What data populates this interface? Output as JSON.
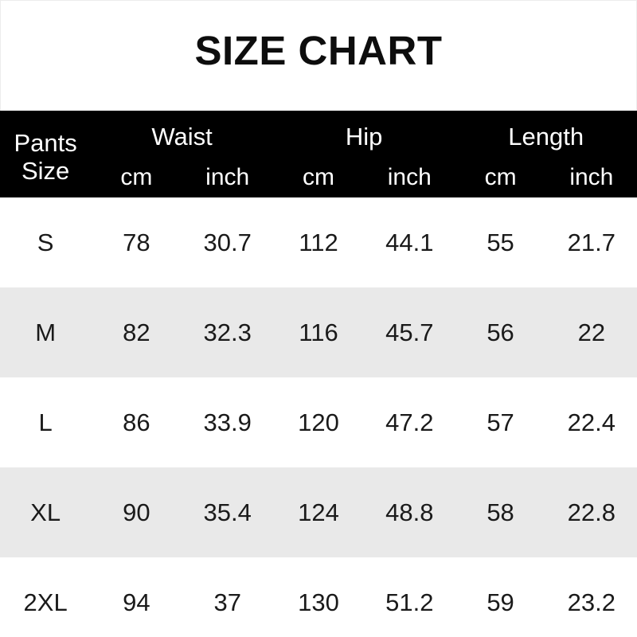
{
  "title": "SIZE CHART",
  "colors": {
    "header_bg": "#000000",
    "header_text": "#ffffff",
    "body_text": "#1a1a1a",
    "row_bg": "#ffffff",
    "row_alt_bg": "#e9e9e9"
  },
  "table": {
    "corner": {
      "line1": "Pants",
      "line2": "Size"
    },
    "groups": [
      {
        "label": "Waist",
        "sub": [
          "cm",
          "inch"
        ]
      },
      {
        "label": "Hip",
        "sub": [
          "cm",
          "inch"
        ]
      },
      {
        "label": "Length",
        "sub": [
          "cm",
          "inch"
        ]
      }
    ],
    "rows": [
      {
        "size": "S",
        "waist_cm": "78",
        "waist_inch": "30.7",
        "hip_cm": "112",
        "hip_inch": "44.1",
        "length_cm": "55",
        "length_inch": "21.7"
      },
      {
        "size": "M",
        "waist_cm": "82",
        "waist_inch": "32.3",
        "hip_cm": "116",
        "hip_inch": "45.7",
        "length_cm": "56",
        "length_inch": "22"
      },
      {
        "size": "L",
        "waist_cm": "86",
        "waist_inch": "33.9",
        "hip_cm": "120",
        "hip_inch": "47.2",
        "length_cm": "57",
        "length_inch": "22.4"
      },
      {
        "size": "XL",
        "waist_cm": "90",
        "waist_inch": "35.4",
        "hip_cm": "124",
        "hip_inch": "48.8",
        "length_cm": "58",
        "length_inch": "22.8"
      },
      {
        "size": "2XL",
        "waist_cm": "94",
        "waist_inch": "37",
        "hip_cm": "130",
        "hip_inch": "51.2",
        "length_cm": "59",
        "length_inch": "23.2"
      }
    ]
  },
  "chart_data": {
    "type": "table",
    "title": "SIZE CHART",
    "columns": [
      "Pants Size",
      "Waist cm",
      "Waist inch",
      "Hip cm",
      "Hip inch",
      "Length cm",
      "Length inch"
    ],
    "rows": [
      [
        "S",
        78,
        30.7,
        112,
        44.1,
        55,
        21.7
      ],
      [
        "M",
        82,
        32.3,
        116,
        45.7,
        56,
        22
      ],
      [
        "L",
        86,
        33.9,
        120,
        47.2,
        57,
        22.4
      ],
      [
        "XL",
        90,
        35.4,
        124,
        48.8,
        58,
        22.8
      ],
      [
        "2XL",
        94,
        37,
        130,
        51.2,
        59,
        23.2
      ]
    ]
  }
}
